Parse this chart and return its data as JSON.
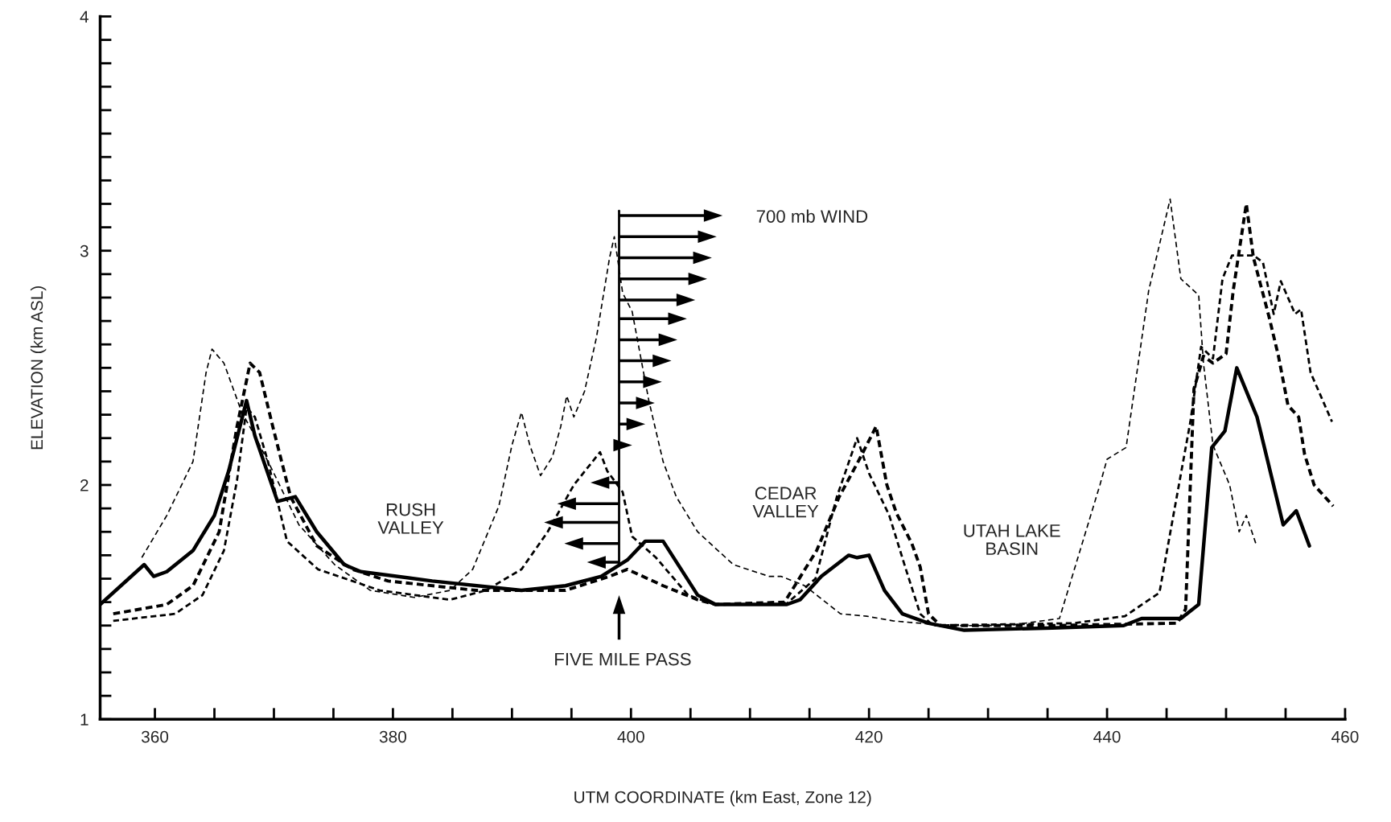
{
  "chart_data": {
    "type": "line",
    "xlabel": "UTM COORDINATE (km East, Zone 12)",
    "ylabel": "ELEVATION (km ASL)",
    "xlim": [
      355.4,
      460
    ],
    "ylim": [
      1,
      4
    ],
    "xticks": [
      360,
      {
        "value": 365,
        "label": null
      },
      {
        "value": 370,
        "label": null
      },
      {
        "value": 375,
        "label": null
      },
      380,
      {
        "value": 385,
        "label": null
      },
      {
        "value": 390,
        "label": null
      },
      {
        "value": 395,
        "label": null
      },
      400,
      {
        "value": 405,
        "label": null
      },
      {
        "value": 410,
        "label": null
      },
      {
        "value": 415,
        "label": null
      },
      420,
      {
        "value": 425,
        "label": null
      },
      {
        "value": 430,
        "label": null
      },
      {
        "value": 435,
        "label": null
      },
      440,
      {
        "value": 445,
        "label": null
      },
      {
        "value": 450,
        "label": null
      },
      {
        "value": 455,
        "label": null
      },
      460
    ],
    "yticks": [
      1,
      {
        "value": 1.1,
        "label": null
      },
      {
        "value": 1.2,
        "label": null
      },
      {
        "value": 1.3,
        "label": null
      },
      {
        "value": 1.4,
        "label": null
      },
      {
        "value": 1.5,
        "label": null
      },
      {
        "value": 1.6,
        "label": null
      },
      {
        "value": 1.7,
        "label": null
      },
      {
        "value": 1.8,
        "label": null
      },
      {
        "value": 1.9,
        "label": null
      },
      2,
      {
        "value": 2.1,
        "label": null
      },
      {
        "value": 2.2,
        "label": null
      },
      {
        "value": 2.3,
        "label": null
      },
      {
        "value": 2.4,
        "label": null
      },
      {
        "value": 2.5,
        "label": null
      },
      {
        "value": 2.6,
        "label": null
      },
      {
        "value": 2.7,
        "label": null
      },
      {
        "value": 2.8,
        "label": null
      },
      {
        "value": 2.9,
        "label": null
      },
      3,
      {
        "value": 3.1,
        "label": null
      },
      {
        "value": 3.2,
        "label": null
      },
      {
        "value": 3.3,
        "label": null
      },
      {
        "value": 3.4,
        "label": null
      },
      {
        "value": 3.5,
        "label": null
      },
      {
        "value": 3.6,
        "label": null
      },
      {
        "value": 3.7,
        "label": null
      },
      {
        "value": 3.8,
        "label": null
      },
      {
        "value": 3.9,
        "label": null
      },
      4
    ],
    "grid": false,
    "legend": false,
    "annotations": [
      "RUSH\nVALLEY",
      "CEDAR\nVALLEY",
      "UTAH LAKE\nBASIN",
      "FIVE MILE PASS",
      "700 mb WIND"
    ],
    "series": [
      {
        "color": "#000000",
        "line_style": "solid",
        "x": [
          355.4,
          359.1,
          359.9,
          361,
          363.2,
          365,
          366.2,
          367.7,
          368.4,
          370.3,
          371.8,
          373.6,
          375.9,
          377.3,
          383.3,
          390.8,
          394.5,
          397.5,
          399.7,
          401.2,
          402.7,
          405.6,
          407.1,
          413.1,
          414.2,
          416,
          418.3,
          419,
          420,
          421.3,
          422.8,
          425,
          428,
          435.4,
          441.4,
          442.9,
          446.2,
          447.7,
          448.8,
          449.9,
          450.9,
          452.6,
          454.8,
          455.9,
          457
        ],
        "values": [
          1.49,
          1.66,
          1.61,
          1.63,
          1.72,
          1.87,
          2.06,
          2.36,
          2.21,
          1.93,
          1.95,
          1.8,
          1.66,
          1.63,
          1.59,
          1.55,
          1.57,
          1.61,
          1.68,
          1.76,
          1.76,
          1.53,
          1.49,
          1.49,
          1.51,
          1.61,
          1.7,
          1.69,
          1.7,
          1.55,
          1.45,
          1.41,
          1.38,
          1.39,
          1.4,
          1.43,
          1.43,
          1.49,
          2.16,
          2.23,
          2.5,
          2.29,
          1.83,
          1.89,
          1.74
        ]
      },
      {
        "color": "#000000",
        "line_style": "dashed",
        "x": [
          356.5,
          361,
          363.2,
          365.4,
          366.9,
          368,
          368.8,
          369.9,
          371.4,
          373.6,
          376.6,
          379.6,
          387,
          394.5,
          398.2,
          399.7,
          402.7,
          405.6,
          407.1,
          412.9,
          415.6,
          417.5,
          419.3,
          420.6,
          421.5,
          422.3,
          423.6,
          424.3,
          425,
          426,
          435.4,
          445.9,
          446.6,
          447.3,
          448.1,
          448.9,
          450,
          450.6,
          451.7,
          452.3,
          453.6,
          454.4,
          455.2,
          456.1,
          456.6,
          457.4,
          459
        ],
        "values": [
          1.45,
          1.49,
          1.57,
          1.8,
          2.25,
          2.52,
          2.48,
          2.25,
          1.95,
          1.74,
          1.64,
          1.59,
          1.55,
          1.55,
          1.61,
          1.64,
          1.57,
          1.51,
          1.49,
          1.5,
          1.72,
          1.95,
          2.12,
          2.25,
          2.0,
          1.88,
          1.75,
          1.65,
          1.45,
          1.4,
          1.4,
          1.41,
          1.47,
          2.41,
          2.55,
          2.52,
          2.56,
          2.83,
          3.2,
          2.97,
          2.72,
          2.55,
          2.34,
          2.29,
          2.13,
          2.0,
          1.91
        ]
      },
      {
        "color": "#000000",
        "line_style": "dashed",
        "x": [
          356.5,
          361.7,
          364,
          365.8,
          366.9,
          367.7,
          368.4,
          369.5,
          371.1,
          373.7,
          378.9,
          384.8,
          387.8,
          390.8,
          393,
          395.2,
          397.4,
          398,
          399.3,
          400.1,
          402.1,
          404.8,
          407,
          413,
          415.5,
          417.3,
          419,
          420,
          421.7,
          423.1,
          424.3,
          425.4,
          437.2,
          441.5,
          444.4,
          445.5,
          447,
          447.9,
          448.9,
          449.7,
          450.5,
          451.1,
          452.3,
          453.1,
          454,
          454.6,
          455.8,
          456.3,
          457.1,
          458.9
        ],
        "values": [
          1.42,
          1.45,
          1.53,
          1.72,
          2.02,
          2.33,
          2.29,
          2.1,
          1.76,
          1.64,
          1.55,
          1.51,
          1.55,
          1.64,
          1.8,
          2.0,
          2.14,
          2.06,
          1.97,
          1.78,
          1.69,
          1.53,
          1.49,
          1.49,
          1.6,
          1.95,
          2.2,
          2.05,
          1.87,
          1.64,
          1.45,
          1.4,
          1.41,
          1.44,
          1.54,
          1.85,
          2.27,
          2.59,
          2.54,
          2.88,
          2.98,
          2.98,
          2.98,
          2.95,
          2.73,
          2.87,
          2.73,
          2.75,
          2.48,
          2.27
        ]
      },
      {
        "color": "#000000",
        "line_style": "dashed",
        "x": [
          358.9,
          361,
          363.2,
          364.3,
          364.8,
          365.8,
          367.3,
          368.4,
          369.9,
          372.1,
          375.1,
          378.1,
          381.8,
          384.8,
          386.7,
          388.9,
          390,
          390.8,
          391.5,
          392.4,
          393.4,
          394.1,
          394.6,
          395.2,
          396.1,
          397.1,
          398.2,
          398.6,
          399.3,
          400.1,
          400.8,
          401.5,
          402.7,
          403.8,
          405.6,
          408.6,
          411.6,
          412.6,
          414.6,
          417.6,
          419.8,
          422,
          426.5,
          431.7,
          436,
          439.4,
          440,
          441.6,
          443.5,
          445.3,
          446.2,
          447.7,
          448.1,
          448.9,
          450.3,
          451.1,
          451.7,
          452.5
        ],
        "values": [
          1.69,
          1.87,
          2.1,
          2.48,
          2.58,
          2.52,
          2.31,
          2.21,
          2.06,
          1.83,
          1.66,
          1.55,
          1.52,
          1.55,
          1.64,
          1.91,
          2.17,
          2.31,
          2.17,
          2.04,
          2.12,
          2.25,
          2.38,
          2.29,
          2.4,
          2.63,
          2.97,
          3.06,
          2.82,
          2.74,
          2.55,
          2.36,
          2.1,
          1.95,
          1.8,
          1.66,
          1.61,
          1.61,
          1.57,
          1.45,
          1.44,
          1.42,
          1.4,
          1.4,
          1.43,
          2.0,
          2.11,
          2.16,
          2.83,
          3.22,
          2.88,
          2.81,
          2.52,
          2.17,
          2.0,
          1.8,
          1.87,
          1.75
        ]
      }
    ]
  }
}
